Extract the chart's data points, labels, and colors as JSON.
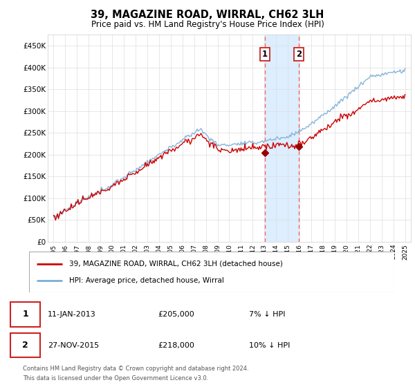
{
  "title": "39, MAGAZINE ROAD, WIRRAL, CH62 3LH",
  "subtitle": "Price paid vs. HM Land Registry's House Price Index (HPI)",
  "ylim": [
    0,
    475000
  ],
  "yticks": [
    0,
    50000,
    100000,
    150000,
    200000,
    250000,
    300000,
    350000,
    400000,
    450000
  ],
  "ytick_labels": [
    "£0",
    "£50K",
    "£100K",
    "£150K",
    "£200K",
    "£250K",
    "£300K",
    "£350K",
    "£400K",
    "£450K"
  ],
  "sale1_date_label": "11-JAN-2013",
  "sale1_price": 205000,
  "sale1_price_label": "£205,000",
  "sale1_hpi_label": "7% ↓ HPI",
  "sale1_x": 2013.03,
  "sale2_date_label": "27-NOV-2015",
  "sale2_price": 218000,
  "sale2_price_label": "£218,000",
  "sale2_hpi_label": "10% ↓ HPI",
  "sale2_x": 2015.92,
  "legend_line1": "39, MAGAZINE ROAD, WIRRAL, CH62 3LH (detached house)",
  "legend_line2": "HPI: Average price, detached house, Wirral",
  "footer1": "Contains HM Land Registry data © Crown copyright and database right 2024.",
  "footer2": "This data is licensed under the Open Government Licence v3.0.",
  "hpi_color": "#7aaed6",
  "price_color": "#cc0000",
  "shade_color": "#ddeeff",
  "vline_color": "#ff6666",
  "marker_color": "#990000",
  "label1": "1",
  "label2": "2"
}
